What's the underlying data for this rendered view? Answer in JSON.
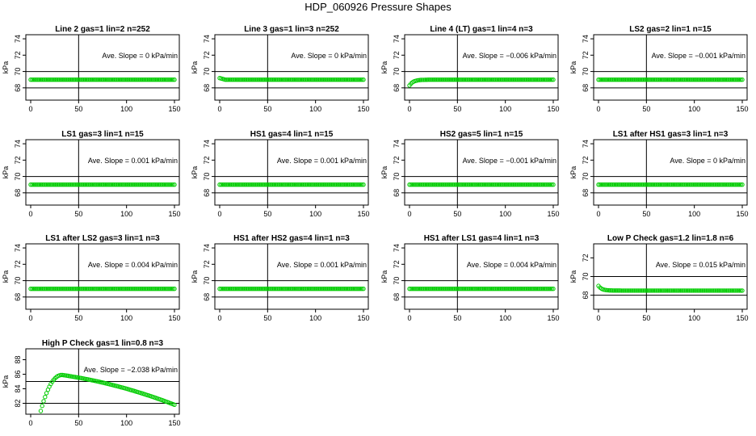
{
  "title": "HDP_060926  Pressure Shapes",
  "chart_data": [
    {
      "type": "scatter",
      "title": "Line 2 gas=1 lin=2 n=252",
      "ylabel": "kPa",
      "xlim": [
        0,
        150
      ],
      "ylim": [
        66.5,
        74.5
      ],
      "x_ticks": [
        0,
        50,
        100,
        150
      ],
      "y_ticks": [
        68,
        70,
        72,
        74
      ],
      "hlines": [
        68,
        70
      ],
      "vline": 50,
      "annotation": "Ave. Slope =  0  kPa/min",
      "series": [
        {
          "shape": "flat",
          "y": 69
        }
      ]
    },
    {
      "type": "scatter",
      "title": "Line 3 gas=1 lin=3 n=252",
      "ylabel": "kPa",
      "xlim": [
        0,
        150
      ],
      "ylim": [
        66.5,
        74.5
      ],
      "x_ticks": [
        0,
        50,
        100,
        150
      ],
      "y_ticks": [
        68,
        70,
        72,
        74
      ],
      "hlines": [
        68,
        70
      ],
      "vline": 50,
      "annotation": "Ave. Slope =  0  kPa/min",
      "series": [
        {
          "shape": "flat_start",
          "y": 69,
          "y0": 69.2
        }
      ]
    },
    {
      "type": "scatter",
      "title": "Line 4 (LT) gas=1 lin=4 n=3",
      "ylabel": "kPa",
      "xlim": [
        0,
        150
      ],
      "ylim": [
        66.5,
        74.5
      ],
      "x_ticks": [
        0,
        50,
        100,
        150
      ],
      "y_ticks": [
        68,
        70,
        72,
        74
      ],
      "hlines": [
        68,
        70
      ],
      "vline": 50,
      "annotation": "Ave. Slope =  −0.006  kPa/min",
      "series": [
        {
          "shape": "rise",
          "y": 69,
          "y0": 68.3
        }
      ]
    },
    {
      "type": "scatter",
      "title": "LS2 gas=2 lin=1 n=15",
      "ylabel": "kPa",
      "xlim": [
        0,
        150
      ],
      "ylim": [
        66.5,
        74.5
      ],
      "x_ticks": [
        0,
        50,
        100,
        150
      ],
      "y_ticks": [
        68,
        70,
        72,
        74
      ],
      "hlines": [
        68,
        70
      ],
      "vline": 50,
      "annotation": "Ave. Slope =  −0.001  kPa/min",
      "series": [
        {
          "shape": "flat",
          "y": 69
        }
      ]
    },
    {
      "type": "scatter",
      "title": "LS1 gas=3 lin=1 n=15",
      "ylabel": "kPa",
      "xlim": [
        0,
        150
      ],
      "ylim": [
        66.5,
        74.5
      ],
      "x_ticks": [
        0,
        50,
        100,
        150
      ],
      "y_ticks": [
        68,
        70,
        72,
        74
      ],
      "hlines": [
        68,
        70
      ],
      "vline": 50,
      "annotation": "Ave. Slope =  0.001  kPa/min",
      "series": [
        {
          "shape": "flat",
          "y": 69
        }
      ]
    },
    {
      "type": "scatter",
      "title": "HS1 gas=4 lin=1 n=15",
      "ylabel": "kPa",
      "xlim": [
        0,
        150
      ],
      "ylim": [
        66.5,
        74.5
      ],
      "x_ticks": [
        0,
        50,
        100,
        150
      ],
      "y_ticks": [
        68,
        70,
        72,
        74
      ],
      "hlines": [
        68,
        70
      ],
      "vline": 50,
      "annotation": "Ave. Slope =  0.001  kPa/min",
      "series": [
        {
          "shape": "flat",
          "y": 69
        }
      ]
    },
    {
      "type": "scatter",
      "title": "HS2 gas=5 lin=1 n=15",
      "ylabel": "kPa",
      "xlim": [
        0,
        150
      ],
      "ylim": [
        66.5,
        74.5
      ],
      "x_ticks": [
        0,
        50,
        100,
        150
      ],
      "y_ticks": [
        68,
        70,
        72,
        74
      ],
      "hlines": [
        68,
        70
      ],
      "vline": 50,
      "annotation": "Ave. Slope =  −0.001  kPa/min",
      "series": [
        {
          "shape": "flat",
          "y": 69
        }
      ]
    },
    {
      "type": "scatter",
      "title": "LS1 after HS1 gas=3 lin=1 n=3",
      "ylabel": "kPa",
      "xlim": [
        0,
        150
      ],
      "ylim": [
        66.5,
        74.5
      ],
      "x_ticks": [
        0,
        50,
        100,
        150
      ],
      "y_ticks": [
        68,
        70,
        72,
        74
      ],
      "hlines": [
        68,
        70
      ],
      "vline": 50,
      "annotation": "Ave. Slope =  0  kPa/min",
      "series": [
        {
          "shape": "flat",
          "y": 69
        }
      ]
    },
    {
      "type": "scatter",
      "title": "LS1 after LS2 gas=3 lin=1 n=3",
      "ylabel": "kPa",
      "xlim": [
        0,
        150
      ],
      "ylim": [
        66.5,
        74.5
      ],
      "x_ticks": [
        0,
        50,
        100,
        150
      ],
      "y_ticks": [
        68,
        70,
        72,
        74
      ],
      "hlines": [
        68,
        70
      ],
      "vline": 50,
      "annotation": "Ave. Slope =  0.004  kPa/min",
      "series": [
        {
          "shape": "flat",
          "y": 69
        }
      ]
    },
    {
      "type": "scatter",
      "title": "HS1 after HS2 gas=4 lin=1 n=3",
      "ylabel": "kPa",
      "xlim": [
        0,
        150
      ],
      "ylim": [
        66.5,
        74.5
      ],
      "x_ticks": [
        0,
        50,
        100,
        150
      ],
      "y_ticks": [
        68,
        70,
        72,
        74
      ],
      "hlines": [
        68,
        70
      ],
      "vline": 50,
      "annotation": "Ave. Slope =  0.001  kPa/min",
      "series": [
        {
          "shape": "flat",
          "y": 69
        }
      ]
    },
    {
      "type": "scatter",
      "title": "HS1 after LS1 gas=4 lin=1 n=3",
      "ylabel": "kPa",
      "xlim": [
        0,
        150
      ],
      "ylim": [
        66.5,
        74.5
      ],
      "x_ticks": [
        0,
        50,
        100,
        150
      ],
      "y_ticks": [
        68,
        70,
        72,
        74
      ],
      "hlines": [
        68,
        70
      ],
      "vline": 50,
      "annotation": "Ave. Slope =  0.004  kPa/min",
      "series": [
        {
          "shape": "flat",
          "y": 69
        }
      ]
    },
    {
      "type": "scatter",
      "title": "Low P Check gas=1.2 lin=1.8 n=6",
      "ylabel": "kPa",
      "xlim": [
        0,
        150
      ],
      "ylim": [
        66.5,
        73.5
      ],
      "x_ticks": [
        0,
        50,
        100,
        150
      ],
      "y_ticks": [
        68,
        70,
        72
      ],
      "hlines": [
        68,
        70
      ],
      "vline": 50,
      "annotation": "Ave. Slope =  0.015  kPa/min",
      "series": [
        {
          "shape": "drop",
          "y": 68.5,
          "y0": 69.0
        }
      ]
    },
    {
      "type": "scatter",
      "title": "High P Check gas=1 lin=0.8 n=3",
      "ylabel": "kPa",
      "xlim": [
        0,
        150
      ],
      "ylim": [
        80.5,
        89.5
      ],
      "x_ticks": [
        0,
        50,
        100,
        150
      ],
      "y_ticks": [
        82,
        84,
        86,
        88
      ],
      "hlines": [
        82,
        85
      ],
      "vline": 50,
      "annotation": "Ave. Slope =  −2.038  kPa/min",
      "series": [
        {
          "shape": "peak",
          "x_start": 10,
          "y_start": 80.7,
          "x_peak": 33,
          "y_peak": 85.9,
          "y_end": 81.8
        }
      ]
    }
  ]
}
